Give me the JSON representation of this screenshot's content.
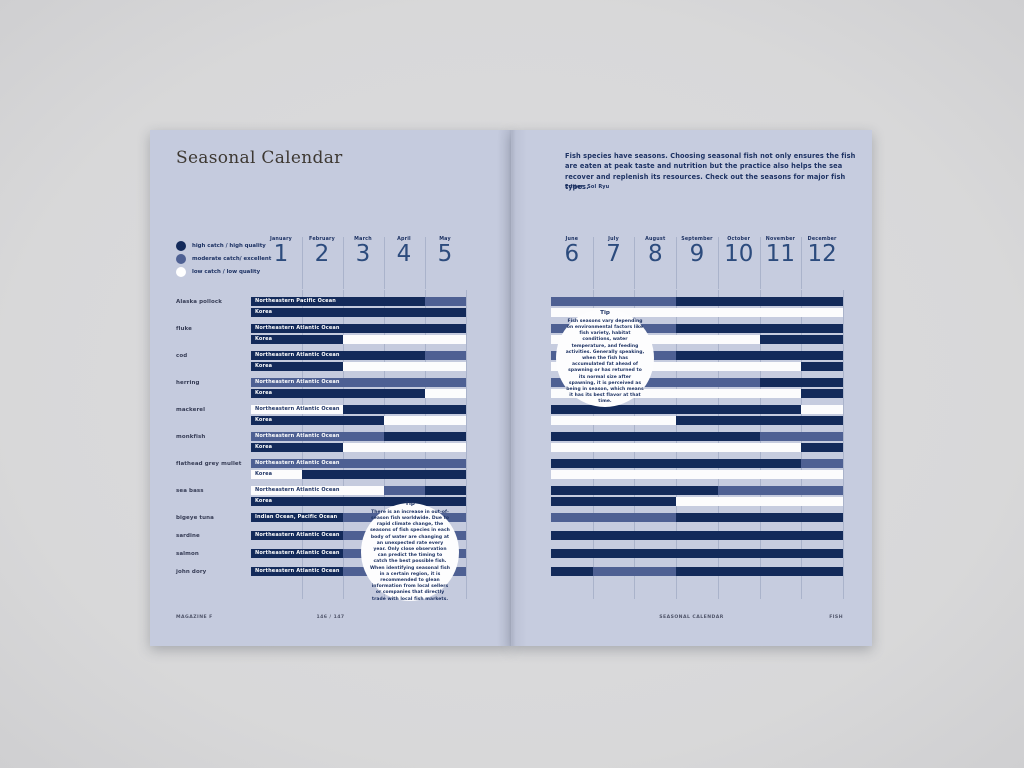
{
  "canvas": {
    "background": "#d8d8d9"
  },
  "colors": {
    "page": "#c5cbde",
    "page_right": "#c6ccdf",
    "high": "#132a5a",
    "moderate": "#4e6093",
    "low": "#fcfcfd",
    "grid": "#aab3cb",
    "navy_text": "#1d3263",
    "title_text": "#3d3832",
    "month_number": "#2c4b7d",
    "fish_label": "#353b54",
    "footer_text": "#50556a"
  },
  "left_page": {
    "title": "Seasonal Calendar",
    "footer_left": "MAGAZINE F",
    "footer_center": "146 / 147"
  },
  "right_page": {
    "intro": "Fish species have seasons. Choosing seasonal fish not only ensures the fish are eaten at peak taste and nutrition but the practice also helps the sea recover and replenish its resources. Check out the seasons for major fish types.",
    "editor_label": "Editor",
    "editor_name": "Sol Ryu",
    "footer_center": "SEASONAL CALENDAR",
    "footer_right": "FISH"
  },
  "legend": [
    {
      "level": "high",
      "label": "high catch / high quality"
    },
    {
      "level": "moderate",
      "label": "moderate catch/ excellent"
    },
    {
      "level": "low",
      "label": "low catch / low quality"
    }
  ],
  "months": [
    {
      "name": "January",
      "number": "1"
    },
    {
      "name": "February",
      "number": "2"
    },
    {
      "name": "March",
      "number": "3"
    },
    {
      "name": "April",
      "number": "4"
    },
    {
      "name": "May",
      "number": "5"
    },
    {
      "name": "June",
      "number": "6"
    },
    {
      "name": "July",
      "number": "7"
    },
    {
      "name": "August",
      "number": "8"
    },
    {
      "name": "September",
      "number": "9"
    },
    {
      "name": "October",
      "number": "10"
    },
    {
      "name": "November",
      "number": "11"
    },
    {
      "name": "December",
      "number": "12"
    }
  ],
  "tips": {
    "left": {
      "title": "Tip",
      "body": "There is an increase in out-of-season fish worldwide. Due to rapid climate change, the seasons of fish species in each body of water are changing at an unexpected rate every year. Only close observation can predict the timing to catch the best possible fish. When identifying seasonal fish in a certain region, it is recommended to glean information from local sellers or companies that directly trade with local fish markets."
    },
    "right": {
      "title": "Tip",
      "body": "Fish seasons vary depending on environmental factors like fish variety, habitat conditions, water temperature, and feeding activities. Generally speaking, when the fish has accumulated fat ahead of spawning or has returned to its normal size after spawning, it is perceived as being in season, which means it has its best flavor at that time."
    }
  },
  "chart_data": {
    "type": "heatmap",
    "title": "Seasonal Calendar",
    "x_axis": "months January(1) through December(12); left page Jan-May, right page Jun-Dec; segment bounds are month-start positions 1-13",
    "levels": {
      "high": "high catch / high quality",
      "moderate": "moderate catch/ excellent",
      "low": "low catch / low quality"
    },
    "fish": [
      {
        "name": "Alaska pollock",
        "rows": [
          {
            "region": "Northeastern Pacific Ocean",
            "segments": [
              [
                1,
                5,
                "high"
              ],
              [
                5,
                9,
                "moderate"
              ],
              [
                9,
                13,
                "high"
              ]
            ]
          },
          {
            "region": "Korea",
            "segments": [
              [
                1,
                6,
                "high"
              ],
              [
                6,
                13,
                "low"
              ]
            ]
          }
        ]
      },
      {
        "name": "fluke",
        "rows": [
          {
            "region": "Northeastern Atlantic Ocean",
            "segments": [
              [
                1,
                6,
                "high"
              ],
              [
                6,
                9,
                "moderate"
              ],
              [
                9,
                13,
                "high"
              ]
            ]
          },
          {
            "region": "Korea",
            "segments": [
              [
                1,
                3,
                "high"
              ],
              [
                3,
                11,
                "low"
              ],
              [
                11,
                13,
                "high"
              ]
            ]
          }
        ]
      },
      {
        "name": "cod",
        "rows": [
          {
            "region": "Northeastern Atlantic Ocean",
            "segments": [
              [
                1,
                5,
                "high"
              ],
              [
                5,
                9,
                "moderate"
              ],
              [
                9,
                13,
                "high"
              ]
            ]
          },
          {
            "region": "Korea",
            "segments": [
              [
                1,
                3,
                "high"
              ],
              [
                3,
                12,
                "low"
              ],
              [
                12,
                13,
                "high"
              ]
            ]
          }
        ]
      },
      {
        "name": "herring",
        "rows": [
          {
            "region": "Northeastern Atlantic Ocean",
            "segments": [
              [
                1,
                11,
                "moderate"
              ],
              [
                11,
                13,
                "high"
              ]
            ]
          },
          {
            "region": "Korea",
            "segments": [
              [
                1,
                5,
                "high"
              ],
              [
                5,
                12,
                "low"
              ],
              [
                12,
                13,
                "high"
              ]
            ]
          }
        ]
      },
      {
        "name": "mackerel",
        "rows": [
          {
            "region": "Northeastern Atlantic Ocean",
            "segments": [
              [
                1,
                3,
                "low"
              ],
              [
                3,
                12,
                "high"
              ],
              [
                12,
                13,
                "low"
              ]
            ]
          },
          {
            "region": "Korea",
            "segments": [
              [
                1,
                4,
                "high"
              ],
              [
                4,
                9,
                "low"
              ],
              [
                9,
                13,
                "high"
              ]
            ]
          }
        ]
      },
      {
        "name": "monkfish",
        "rows": [
          {
            "region": "Northeastern Atlantic Ocean",
            "segments": [
              [
                1,
                4,
                "moderate"
              ],
              [
                4,
                11,
                "high"
              ],
              [
                11,
                13,
                "moderate"
              ]
            ]
          },
          {
            "region": "Korea",
            "segments": [
              [
                1,
                3,
                "high"
              ],
              [
                3,
                12,
                "low"
              ],
              [
                12,
                13,
                "high"
              ]
            ]
          }
        ]
      },
      {
        "name": "flathead grey mullet",
        "rows": [
          {
            "region": "Northeastern Atlantic Ocean",
            "segments": [
              [
                1,
                6,
                "moderate"
              ],
              [
                6,
                12,
                "high"
              ],
              [
                12,
                13,
                "moderate"
              ]
            ]
          },
          {
            "region": "Korea",
            "segments": [
              [
                1,
                2,
                "low"
              ],
              [
                2,
                6,
                "high"
              ],
              [
                6,
                13,
                "low"
              ]
            ]
          }
        ]
      },
      {
        "name": "sea bass",
        "rows": [
          {
            "region": "Northeastern Atlantic Ocean",
            "segments": [
              [
                1,
                4,
                "low"
              ],
              [
                4,
                5,
                "moderate"
              ],
              [
                5,
                10,
                "high"
              ],
              [
                10,
                13,
                "moderate"
              ]
            ]
          },
          {
            "region": "Korea",
            "segments": [
              [
                1,
                9,
                "high"
              ],
              [
                9,
                13,
                "low"
              ]
            ]
          }
        ]
      },
      {
        "name": "bigeye tuna",
        "rows": [
          {
            "region": "Indian Ocean, Pacific Ocean",
            "segments": [
              [
                1,
                3,
                "high"
              ],
              [
                3,
                9,
                "moderate"
              ],
              [
                9,
                13,
                "high"
              ]
            ]
          }
        ]
      },
      {
        "name": "sardine",
        "rows": [
          {
            "region": "Northeastern Atlantic Ocean",
            "segments": [
              [
                1,
                3,
                "high"
              ],
              [
                3,
                6,
                "moderate"
              ],
              [
                6,
                13,
                "high"
              ]
            ]
          }
        ]
      },
      {
        "name": "salmon",
        "rows": [
          {
            "region": "Northeastern Atlantic Ocean",
            "segments": [
              [
                1,
                3,
                "high"
              ],
              [
                3,
                6,
                "moderate"
              ],
              [
                6,
                13,
                "high"
              ]
            ]
          }
        ]
      },
      {
        "name": "john dory",
        "rows": [
          {
            "region": "Northeastern Atlantic Ocean",
            "segments": [
              [
                1,
                3,
                "high"
              ],
              [
                3,
                6,
                "moderate"
              ],
              [
                6,
                7,
                "high"
              ],
              [
                7,
                9,
                "moderate"
              ],
              [
                9,
                13,
                "high"
              ]
            ]
          }
        ]
      }
    ]
  }
}
